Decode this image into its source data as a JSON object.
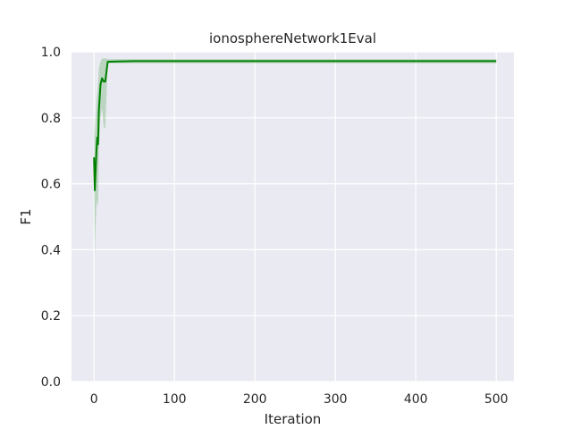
{
  "chart_data": {
    "type": "line",
    "title": "ionosphereNetwork1Eval",
    "xlabel": "Iteration",
    "ylabel": "F1",
    "xlim": [
      -28,
      522
    ],
    "ylim": [
      0.0,
      1.0
    ],
    "x_ticks": [
      0,
      100,
      200,
      300,
      400,
      500
    ],
    "y_ticks": [
      0.0,
      0.2,
      0.4,
      0.6,
      0.8,
      1.0
    ],
    "x_tick_labels": [
      "0",
      "100",
      "200",
      "300",
      "400",
      "500"
    ],
    "y_tick_labels": [
      "0.0",
      "0.2",
      "0.4",
      "0.6",
      "0.8",
      "1.0"
    ],
    "grid": true,
    "background": "#eaeaf2",
    "series": [
      {
        "color": "#008000",
        "band_color": "#008000",
        "points": [
          {
            "x": 0,
            "y": 0.68,
            "lo": 0.62,
            "hi": 0.82
          },
          {
            "x": 1,
            "y": 0.58,
            "lo": 0.38,
            "hi": 0.74
          },
          {
            "x": 2,
            "y": 0.64,
            "lo": 0.47,
            "hi": 0.8
          },
          {
            "x": 3,
            "y": 0.7,
            "lo": 0.53,
            "hi": 0.85
          },
          {
            "x": 4,
            "y": 0.74,
            "lo": 0.55,
            "hi": 0.87
          },
          {
            "x": 5,
            "y": 0.72,
            "lo": 0.53,
            "hi": 0.9
          },
          {
            "x": 6,
            "y": 0.82,
            "lo": 0.7,
            "hi": 0.95
          },
          {
            "x": 8,
            "y": 0.9,
            "lo": 0.8,
            "hi": 0.97
          },
          {
            "x": 10,
            "y": 0.92,
            "lo": 0.83,
            "hi": 0.98
          },
          {
            "x": 12,
            "y": 0.91,
            "lo": 0.77,
            "hi": 0.98
          },
          {
            "x": 14,
            "y": 0.91,
            "lo": 0.77,
            "hi": 0.98
          },
          {
            "x": 16,
            "y": 0.95,
            "lo": 0.9,
            "hi": 0.98
          },
          {
            "x": 17,
            "y": 0.97,
            "lo": 0.965,
            "hi": 0.978
          },
          {
            "x": 50,
            "y": 0.972,
            "lo": 0.965,
            "hi": 0.978
          },
          {
            "x": 100,
            "y": 0.972,
            "lo": 0.965,
            "hi": 0.978
          },
          {
            "x": 200,
            "y": 0.972,
            "lo": 0.965,
            "hi": 0.978
          },
          {
            "x": 300,
            "y": 0.972,
            "lo": 0.965,
            "hi": 0.978
          },
          {
            "x": 400,
            "y": 0.972,
            "lo": 0.965,
            "hi": 0.978
          },
          {
            "x": 500,
            "y": 0.972,
            "lo": 0.965,
            "hi": 0.978
          }
        ]
      }
    ]
  }
}
